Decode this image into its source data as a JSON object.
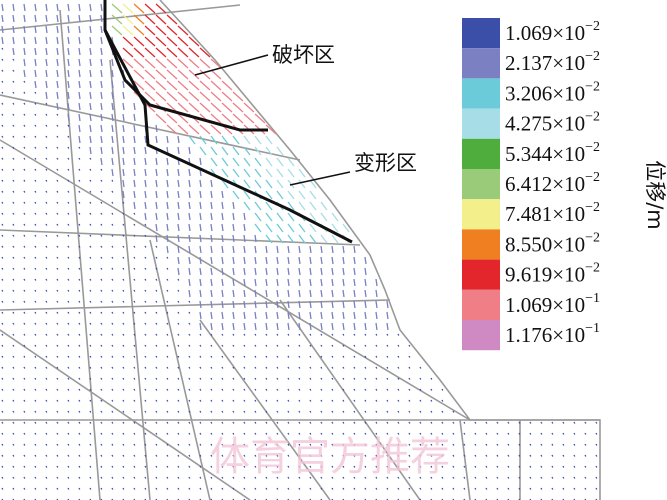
{
  "figure": {
    "annotations": {
      "failure_zone": "破坏区",
      "deformation_zone": "变形区"
    },
    "legend_title": "位移/m",
    "legend": [
      {
        "color": "#3b4fa8",
        "mantissa": "1.069×10",
        "exponent": "−2"
      },
      {
        "color": "#7a80c2",
        "mantissa": "2.137×10",
        "exponent": "−2"
      },
      {
        "color": "#6ccbd8",
        "mantissa": "3.206×10",
        "exponent": "−2"
      },
      {
        "color": "#a6dde6",
        "mantissa": "4.275×10",
        "exponent": "−2"
      },
      {
        "color": "#4fad3e",
        "mantissa": "5.344×10",
        "exponent": "−2"
      },
      {
        "color": "#9acb79",
        "mantissa": "6.412×10",
        "exponent": "−2"
      },
      {
        "color": "#f3ef8a",
        "mantissa": "7.481×10",
        "exponent": "−2"
      },
      {
        "color": "#f07f22",
        "mantissa": "8.550×10",
        "exponent": "−2"
      },
      {
        "color": "#e3262b",
        "mantissa": "9.619×10",
        "exponent": "−2"
      },
      {
        "color": "#ef7e86",
        "mantissa": "1.069×10",
        "exponent": "−1"
      },
      {
        "color": "#cf8ac4",
        "mantissa": "1.176×10",
        "exponent": "−1"
      }
    ],
    "watermark": "体育官方推荐"
  }
}
